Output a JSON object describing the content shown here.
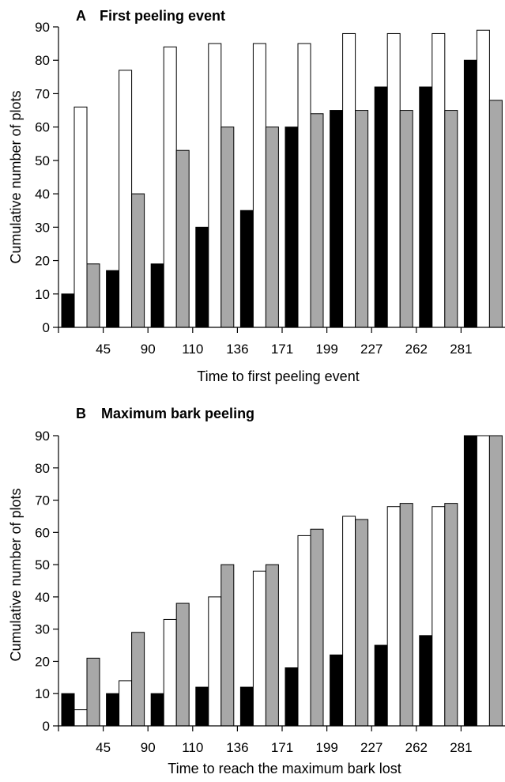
{
  "chart_data": [
    {
      "type": "bar",
      "panel_letter": "A",
      "title": "First peeling event",
      "xlabel": "Time to first peeling event",
      "ylabel": "Cumulative number of plots",
      "ylim": [
        0,
        90
      ],
      "yticks": [
        0,
        10,
        20,
        30,
        40,
        50,
        60,
        70,
        80,
        90
      ],
      "categories": [
        "45",
        "90",
        "110",
        "136",
        "171",
        "199",
        "227",
        "262",
        "281",
        ""
      ],
      "series": [
        {
          "color": "#000000",
          "values": [
            10,
            17,
            19,
            30,
            35,
            60,
            65,
            72,
            72,
            80
          ]
        },
        {
          "color": "#ffffff",
          "values": [
            66,
            77,
            84,
            85,
            85,
            85,
            88,
            88,
            88,
            89
          ]
        },
        {
          "color": "#a8a8a8",
          "values": [
            19,
            40,
            53,
            60,
            60,
            64,
            65,
            65,
            65,
            68
          ]
        }
      ]
    },
    {
      "type": "bar",
      "panel_letter": "B",
      "title": "Maximum bark peeling",
      "xlabel": "Time to reach the maximum bark lost",
      "ylabel": "Cumulative number of plots",
      "ylim": [
        0,
        90
      ],
      "yticks": [
        0,
        10,
        20,
        30,
        40,
        50,
        60,
        70,
        80,
        90
      ],
      "categories": [
        "45",
        "90",
        "110",
        "136",
        "171",
        "199",
        "227",
        "262",
        "281",
        ""
      ],
      "series": [
        {
          "color": "#000000",
          "values": [
            10,
            10,
            10,
            12,
            12,
            18,
            22,
            25,
            28,
            90
          ]
        },
        {
          "color": "#ffffff",
          "values": [
            5,
            14,
            33,
            40,
            48,
            59,
            65,
            68,
            68,
            90
          ]
        },
        {
          "color": "#a8a8a8",
          "values": [
            21,
            29,
            38,
            50,
            50,
            61,
            64,
            69,
            69,
            90
          ]
        }
      ]
    }
  ]
}
